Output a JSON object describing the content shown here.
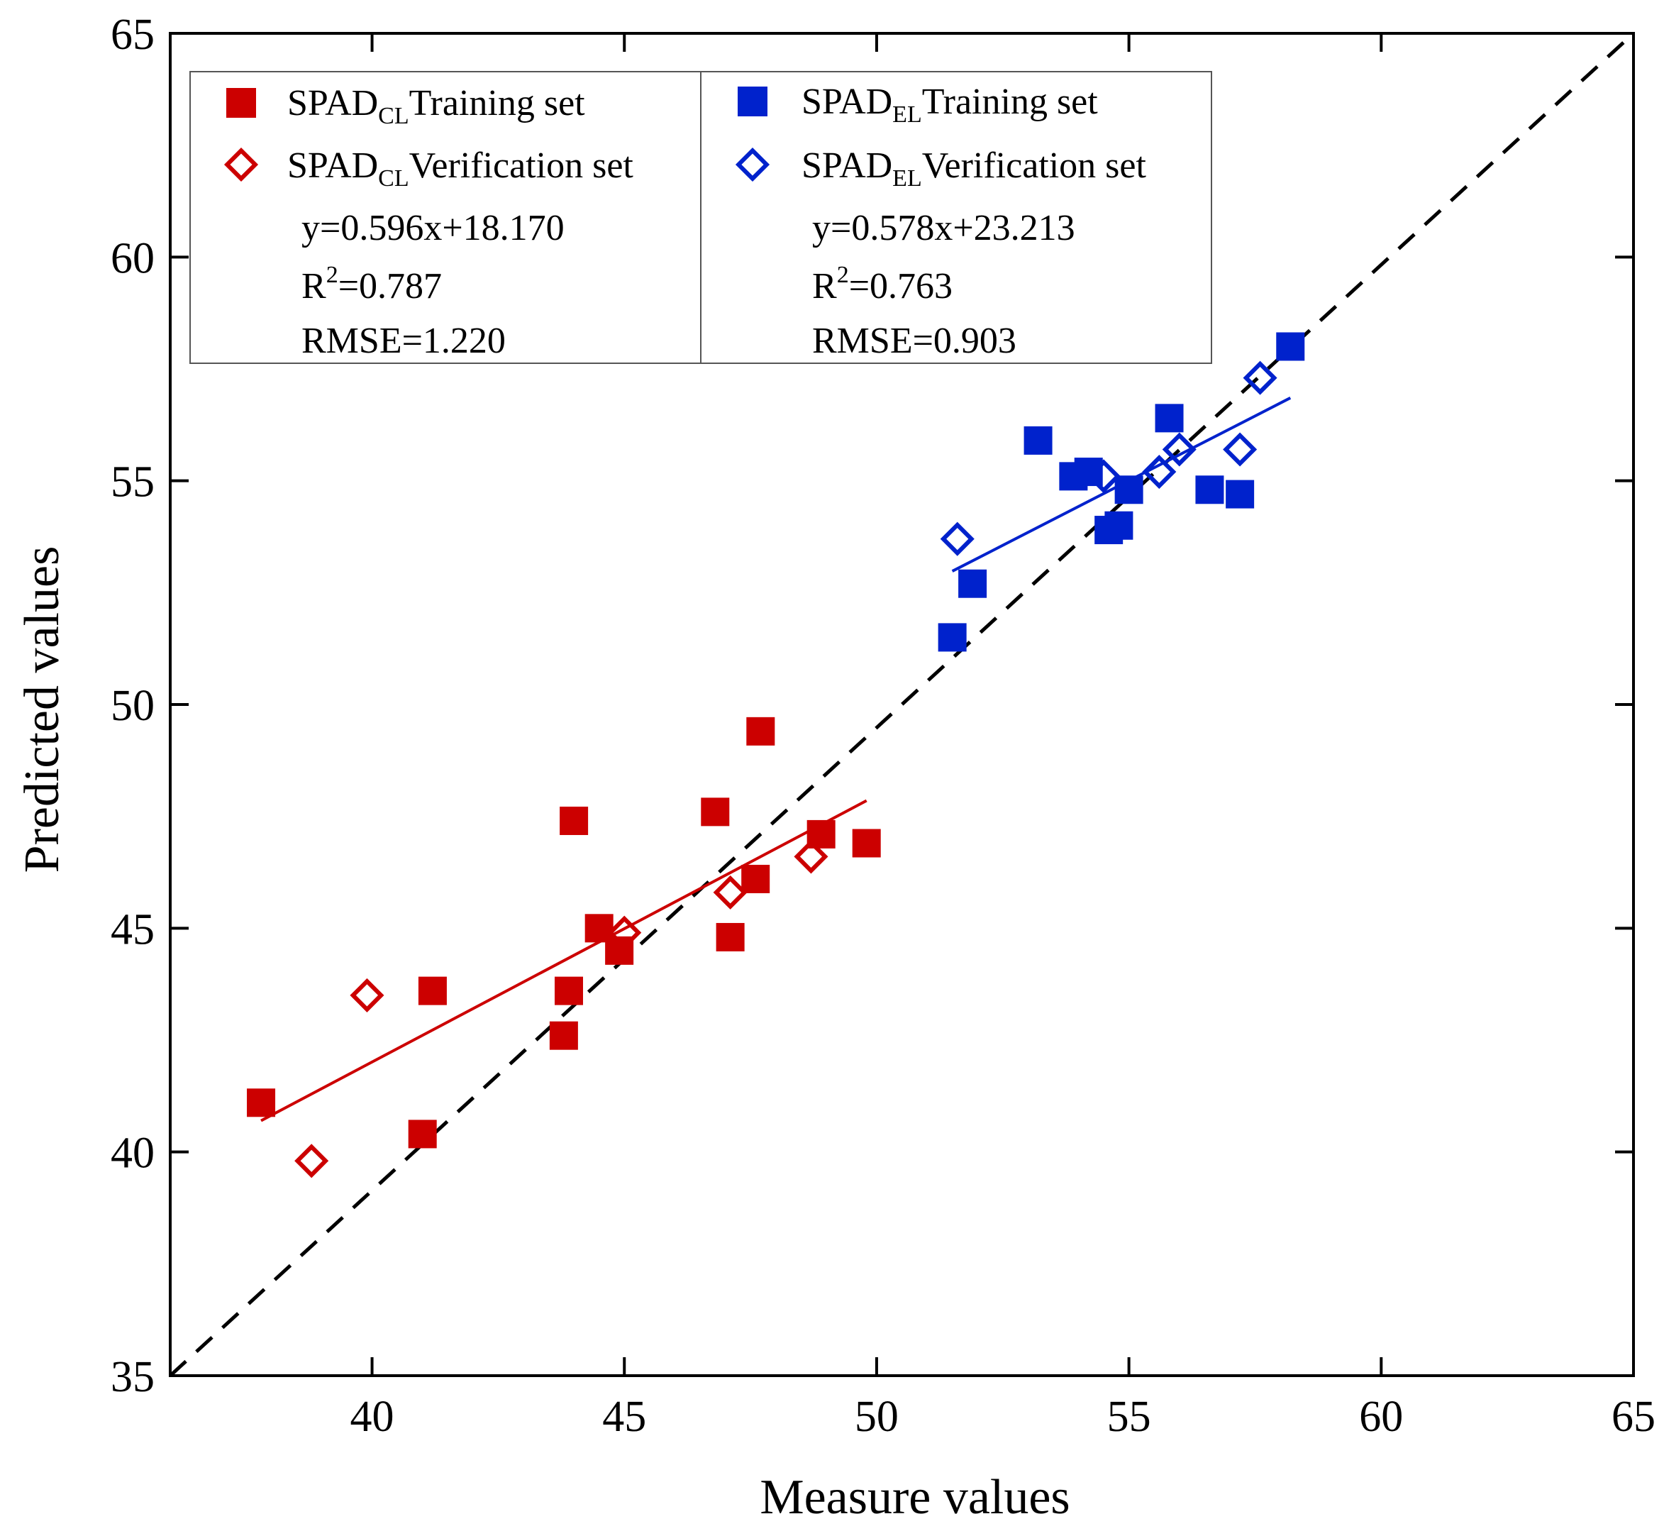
{
  "chart_data": {
    "type": "scatter",
    "xlabel": "Measure values",
    "ylabel": "Predicted values",
    "xlim": [
      36,
      65
    ],
    "ylim": [
      35,
      65
    ],
    "xticks": [
      40,
      45,
      50,
      55,
      60,
      65
    ],
    "yticks": [
      35,
      40,
      45,
      50,
      55,
      60,
      65
    ],
    "grid": false,
    "legend_position": "top-left",
    "colors": {
      "cl": "#cc0000",
      "el": "#0022cc",
      "reference": "#000000"
    },
    "series": [
      {
        "key": "cl_train",
        "name_main": "SPAD",
        "name_sub": "CL",
        "name_rest": "Training set",
        "marker": "filled-square",
        "color": "#cc0000",
        "points": [
          [
            37.8,
            41.1
          ],
          [
            41.0,
            40.4
          ],
          [
            41.2,
            43.6
          ],
          [
            43.8,
            42.6
          ],
          [
            43.9,
            43.6
          ],
          [
            44.0,
            47.4
          ],
          [
            44.5,
            45.0
          ],
          [
            44.9,
            44.5
          ],
          [
            46.8,
            47.6
          ],
          [
            47.1,
            44.8
          ],
          [
            47.6,
            46.1
          ],
          [
            47.7,
            49.4
          ],
          [
            48.9,
            47.1
          ],
          [
            49.8,
            46.9
          ]
        ]
      },
      {
        "key": "cl_verif",
        "name_main": "SPAD",
        "name_sub": "CL",
        "name_rest": "Verification set",
        "marker": "open-diamond",
        "color": "#cc0000",
        "points": [
          [
            38.8,
            39.8
          ],
          [
            39.9,
            43.5
          ],
          [
            45.0,
            44.9
          ],
          [
            47.1,
            45.8
          ],
          [
            48.7,
            46.6
          ]
        ]
      },
      {
        "key": "el_train",
        "name_main": "SPAD",
        "name_sub": "EL",
        "name_rest": "Training set",
        "marker": "filled-square",
        "color": "#0022cc",
        "points": [
          [
            51.5,
            51.5
          ],
          [
            51.9,
            52.7
          ],
          [
            53.2,
            55.9
          ],
          [
            53.9,
            55.1
          ],
          [
            54.2,
            55.2
          ],
          [
            54.6,
            53.9
          ],
          [
            54.8,
            54.0
          ],
          [
            55.0,
            54.8
          ],
          [
            55.8,
            56.4
          ],
          [
            56.6,
            54.8
          ],
          [
            57.2,
            54.7
          ],
          [
            58.2,
            58.0
          ]
        ]
      },
      {
        "key": "el_verif",
        "name_main": "SPAD",
        "name_sub": "EL",
        "name_rest": "Verification set",
        "marker": "open-diamond",
        "color": "#0022cc",
        "points": [
          [
            51.6,
            53.7
          ],
          [
            54.5,
            55.1
          ],
          [
            55.6,
            55.2
          ],
          [
            56.0,
            55.7
          ],
          [
            57.2,
            55.7
          ],
          [
            57.6,
            57.3
          ]
        ]
      }
    ],
    "fit_lines": [
      {
        "key": "cl_fit",
        "color": "#cc0000",
        "slope": 0.596,
        "intercept": 18.17,
        "x_range": [
          37.8,
          49.8
        ]
      },
      {
        "key": "el_fit",
        "color": "#0022cc",
        "slope": 0.578,
        "intercept": 23.213,
        "x_range": [
          51.5,
          58.2
        ]
      }
    ],
    "reference_line": {
      "style": "dashed",
      "from": [
        36,
        35
      ],
      "to": [
        65,
        65
      ]
    },
    "stats": {
      "cl": {
        "equation": "y=0.596x+18.170",
        "r2_prefix": "R",
        "r2_sup": "2",
        "r2_value": "=0.787",
        "rmse": "RMSE=1.220"
      },
      "el": {
        "equation": "y=0.578x+23.213",
        "r2_prefix": "R",
        "r2_sup": "2",
        "r2_value": "=0.763",
        "rmse": "RMSE=0.903"
      }
    }
  }
}
